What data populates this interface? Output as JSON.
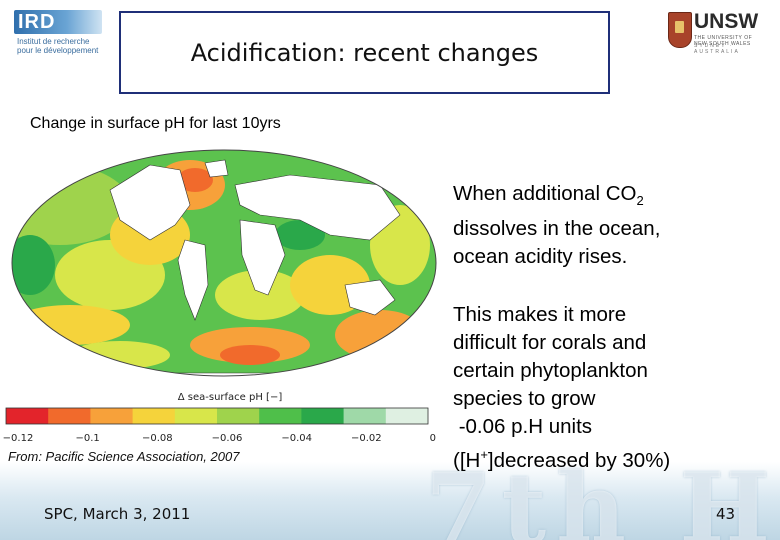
{
  "header": {
    "title": "Acidification: recent changes",
    "left_logo": {
      "name": "IRD",
      "subtext": "Institut de recherche pour le développement"
    },
    "right_logo": {
      "name": "UNSW",
      "subtext": "THE UNIVERSITY OF NEW SOUTH WALES",
      "subtext2": "SYDNEY · AUSTRALIA"
    }
  },
  "subtitle": "Change in surface pH for last 10yrs",
  "map": {
    "colorbar_label": "Δ sea-surface pH [−]",
    "colorbar_ticks": [
      "−0.12",
      "−0.1",
      "−0.08",
      "−0.06",
      "−0.04",
      "−0.02",
      "0"
    ],
    "colors": [
      "#e3242b",
      "#f16a2c",
      "#f7a13a",
      "#f5d33b",
      "#d8e64a",
      "#9fd34c",
      "#4fbf4a",
      "#2aa84a",
      "#9fd9a8",
      "#dff0e2"
    ]
  },
  "source": "From: Pacific Science Association, 2007",
  "right_text": {
    "p1_before_sub": "When additional CO",
    "p1_sub": "2",
    "p1_line2": "dissolves in the ocean,",
    "p1_line3": "ocean acidity rises.",
    "p2_line1": "This makes it more",
    "p2_line2": "difficult for corals and",
    "p2_line3": "certain phytoplankton",
    "p2_line4": "species to grow",
    "p2_line5": " -0.06 p.H units",
    "p2_line6_before": "([H",
    "p2_line6_sup": "+",
    "p2_line6_after": "]decreased by 30%)"
  },
  "footer": {
    "left": "SPC, March 3, 2011",
    "page_number": "43",
    "watermark": "7th HCF"
  }
}
